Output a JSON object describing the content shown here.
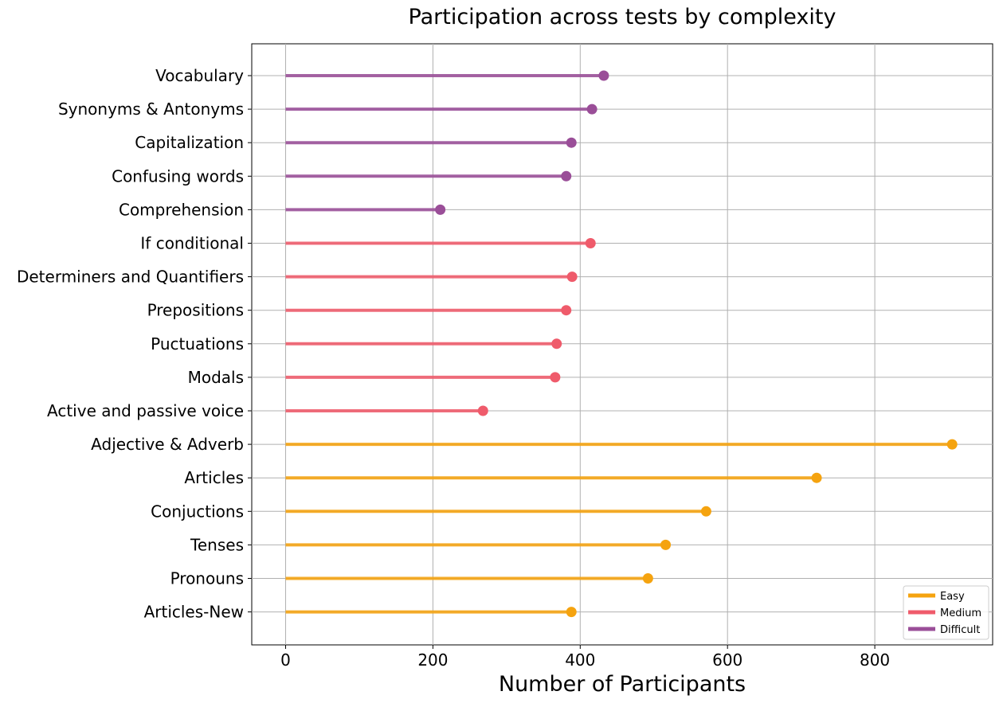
{
  "chart_data": {
    "type": "lollipop",
    "title": "Participation across tests by complexity",
    "xlabel": "Number of Participants",
    "ylabel": "",
    "xlim": [
      -46,
      960
    ],
    "xticks": [
      0,
      200,
      400,
      600,
      800
    ],
    "grid": true,
    "legend_position": "lower-right",
    "colors": {
      "Easy": "#f5a30f",
      "Medium": "#ef5b6b",
      "Difficult": "#9a4e98"
    },
    "series": [
      {
        "name": "Easy",
        "legend_label": "Easy"
      },
      {
        "name": "Medium",
        "legend_label": "Medium"
      },
      {
        "name": "Difficult",
        "legend_label": "Difficult"
      }
    ],
    "categories": [
      "Articles-New",
      "Pronouns",
      "Tenses",
      "Conjuctions",
      "Articles",
      "Adjective & Adverb",
      "Active and passive voice",
      "Modals",
      "Puctuations",
      "Prepositions",
      "Determiners and Quantifiers",
      "If conditional",
      "Comprehension",
      "Confusing words",
      "Capitalization",
      "Synonyms & Antonyms",
      "Vocabulary"
    ],
    "points": [
      {
        "label": "Articles-New",
        "value": 388,
        "complexity": "Easy"
      },
      {
        "label": "Pronouns",
        "value": 492,
        "complexity": "Easy"
      },
      {
        "label": "Tenses",
        "value": 516,
        "complexity": "Easy"
      },
      {
        "label": "Conjuctions",
        "value": 571,
        "complexity": "Easy"
      },
      {
        "label": "Articles",
        "value": 721,
        "complexity": "Easy"
      },
      {
        "label": "Adjective & Adverb",
        "value": 905,
        "complexity": "Easy"
      },
      {
        "label": "Active and passive voice",
        "value": 268,
        "complexity": "Medium"
      },
      {
        "label": "Modals",
        "value": 366,
        "complexity": "Medium"
      },
      {
        "label": "Puctuations",
        "value": 368,
        "complexity": "Medium"
      },
      {
        "label": "Prepositions",
        "value": 381,
        "complexity": "Medium"
      },
      {
        "label": "Determiners and Quantifiers",
        "value": 389,
        "complexity": "Medium"
      },
      {
        "label": "If conditional",
        "value": 414,
        "complexity": "Medium"
      },
      {
        "label": "Comprehension",
        "value": 210,
        "complexity": "Difficult"
      },
      {
        "label": "Confusing words",
        "value": 381,
        "complexity": "Difficult"
      },
      {
        "label": "Capitalization",
        "value": 388,
        "complexity": "Difficult"
      },
      {
        "label": "Synonyms & Antonyms",
        "value": 416,
        "complexity": "Difficult"
      },
      {
        "label": "Vocabulary",
        "value": 432,
        "complexity": "Difficult"
      }
    ]
  }
}
